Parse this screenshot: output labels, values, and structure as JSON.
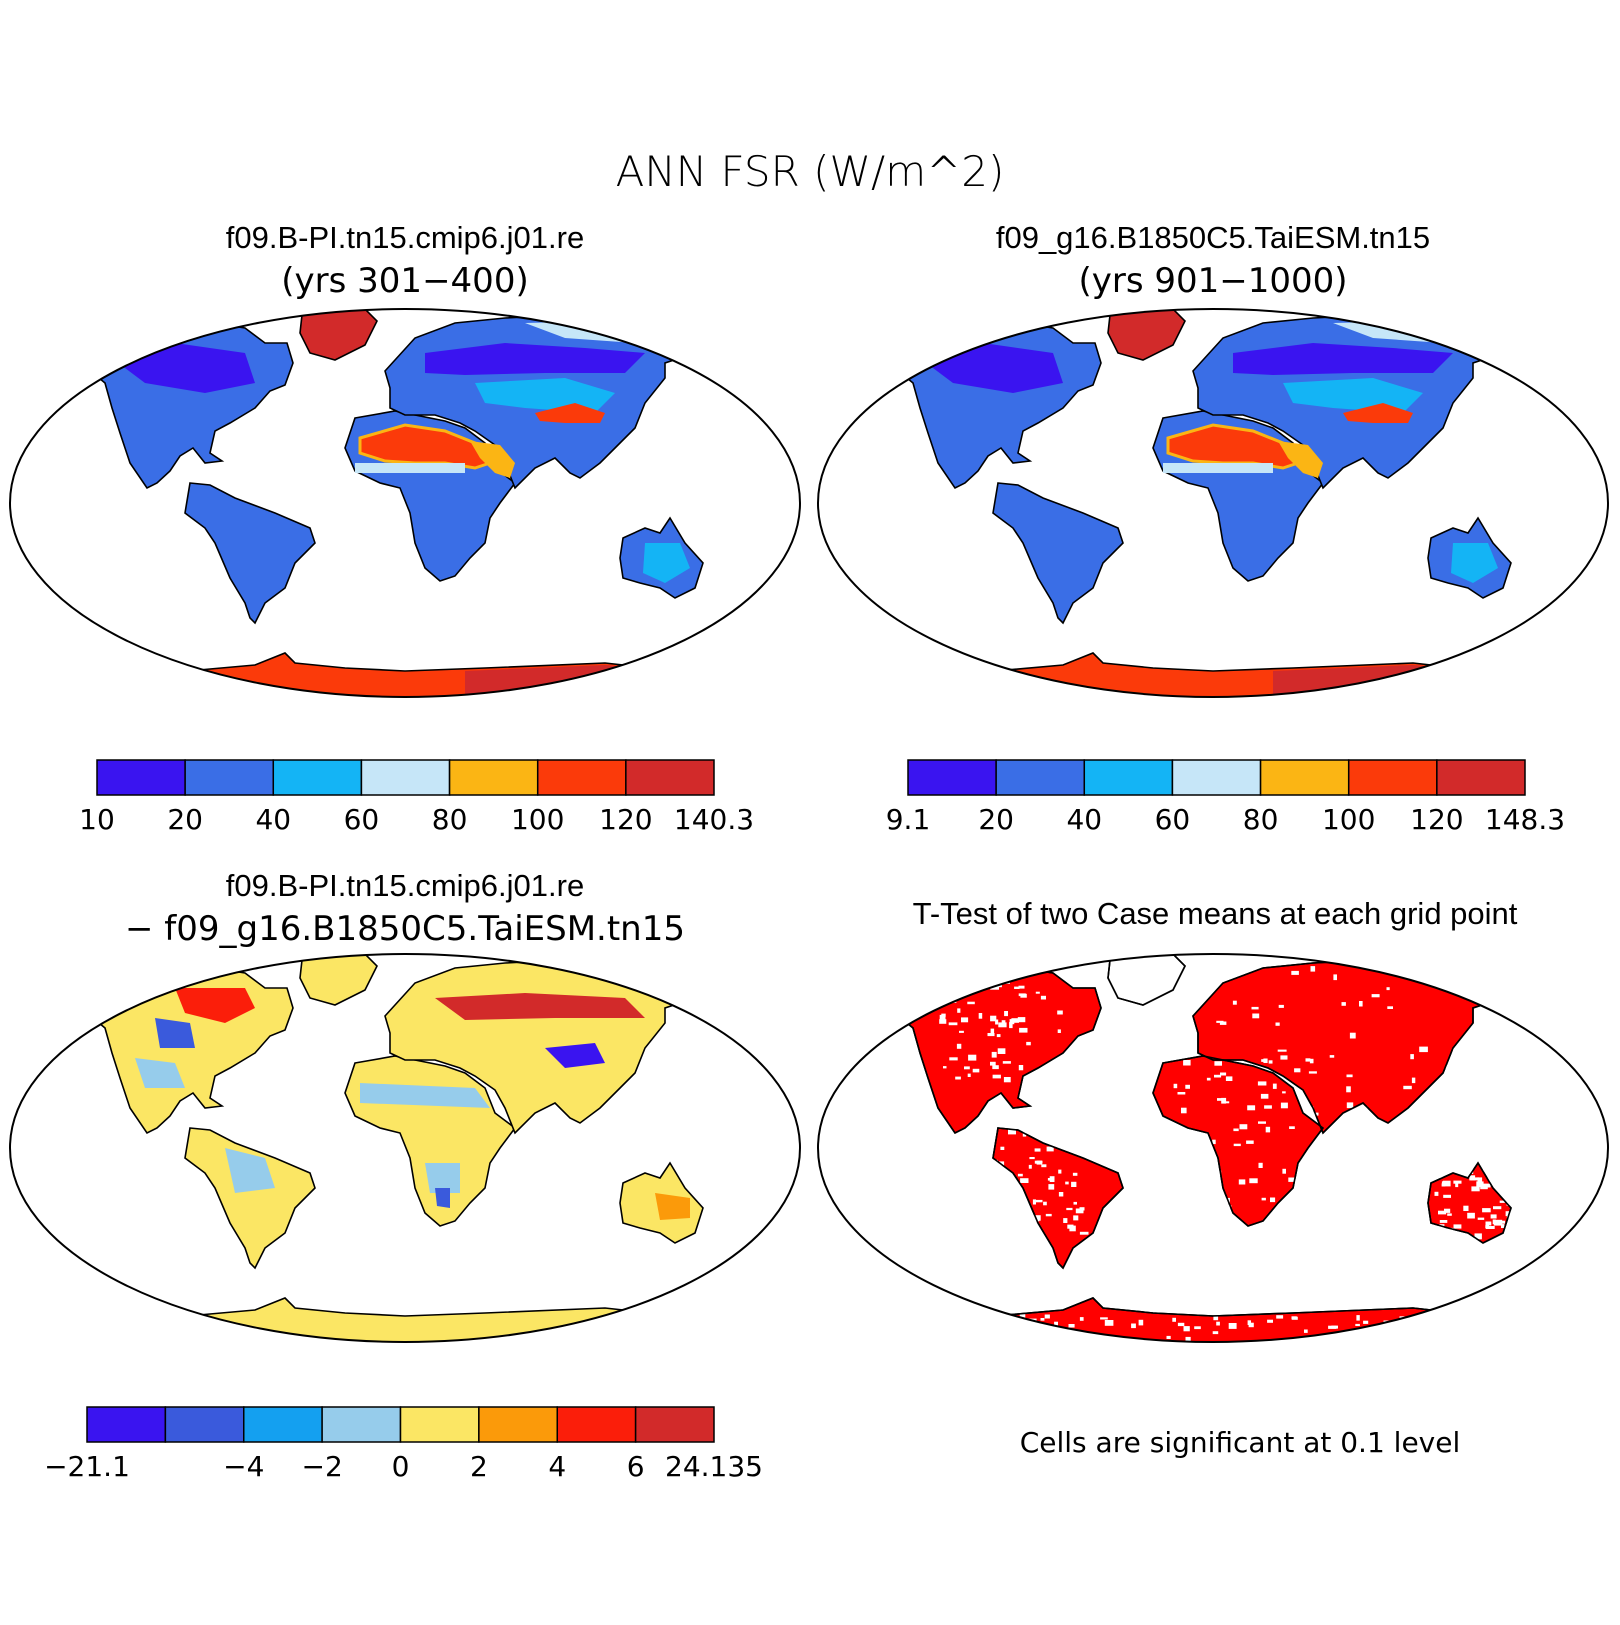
{
  "title": "ANN FSR (W/m^2)",
  "panels": [
    {
      "id": "p1",
      "title": "f09.B-PI.tn15.cmip6.j01.re",
      "subtitle": "(yrs 301−400)"
    },
    {
      "id": "p2",
      "title": "f09_g16.B1850C5.TaiESM.tn15",
      "subtitle": "(yrs 901−1000)"
    },
    {
      "id": "p3",
      "title": "f09.B-PI.tn15.cmip6.j01.re",
      "subtitle": "− f09_g16.B1850C5.TaiESM.tn15"
    },
    {
      "id": "p4",
      "title": "T-Test of two Case means at each grid point",
      "note": "Cells are significant at 0.1 level"
    }
  ],
  "colorbars": {
    "p1": {
      "colors": [
        "#3a14f0",
        "#3a6ee6",
        "#14b4f5",
        "#c6e6f8",
        "#fbb514",
        "#fb3a0a",
        "#d22a2a"
      ],
      "labels": [
        "10",
        "20",
        "40",
        "60",
        "80",
        "100",
        "120",
        "140.3"
      ]
    },
    "p2": {
      "colors": [
        "#3a14f0",
        "#3a6ee6",
        "#14b4f5",
        "#c6e6f8",
        "#fbb514",
        "#fb3a0a",
        "#d22a2a"
      ],
      "labels": [
        "9.1",
        "20",
        "40",
        "60",
        "80",
        "100",
        "120",
        "148.3"
      ]
    },
    "p3": {
      "colors": [
        "#3a14f0",
        "#3a5adc",
        "#14a0f0",
        "#96cceb",
        "#fbe664",
        "#fb9a0a",
        "#fb1e0a",
        "#d22a2a"
      ],
      "labels": [
        "−21.1",
        "",
        "−4",
        "−2",
        "0",
        "2",
        "4",
        "6",
        "24.135"
      ]
    }
  },
  "palette": {
    "land_base": "#3a6ee6",
    "high_lat_ne": "#d22a2a",
    "desert": "#fb3a0a",
    "antarctica": "#fb3a0a",
    "diff_base": "#fbe664",
    "ttest_red": "#ff0000"
  }
}
